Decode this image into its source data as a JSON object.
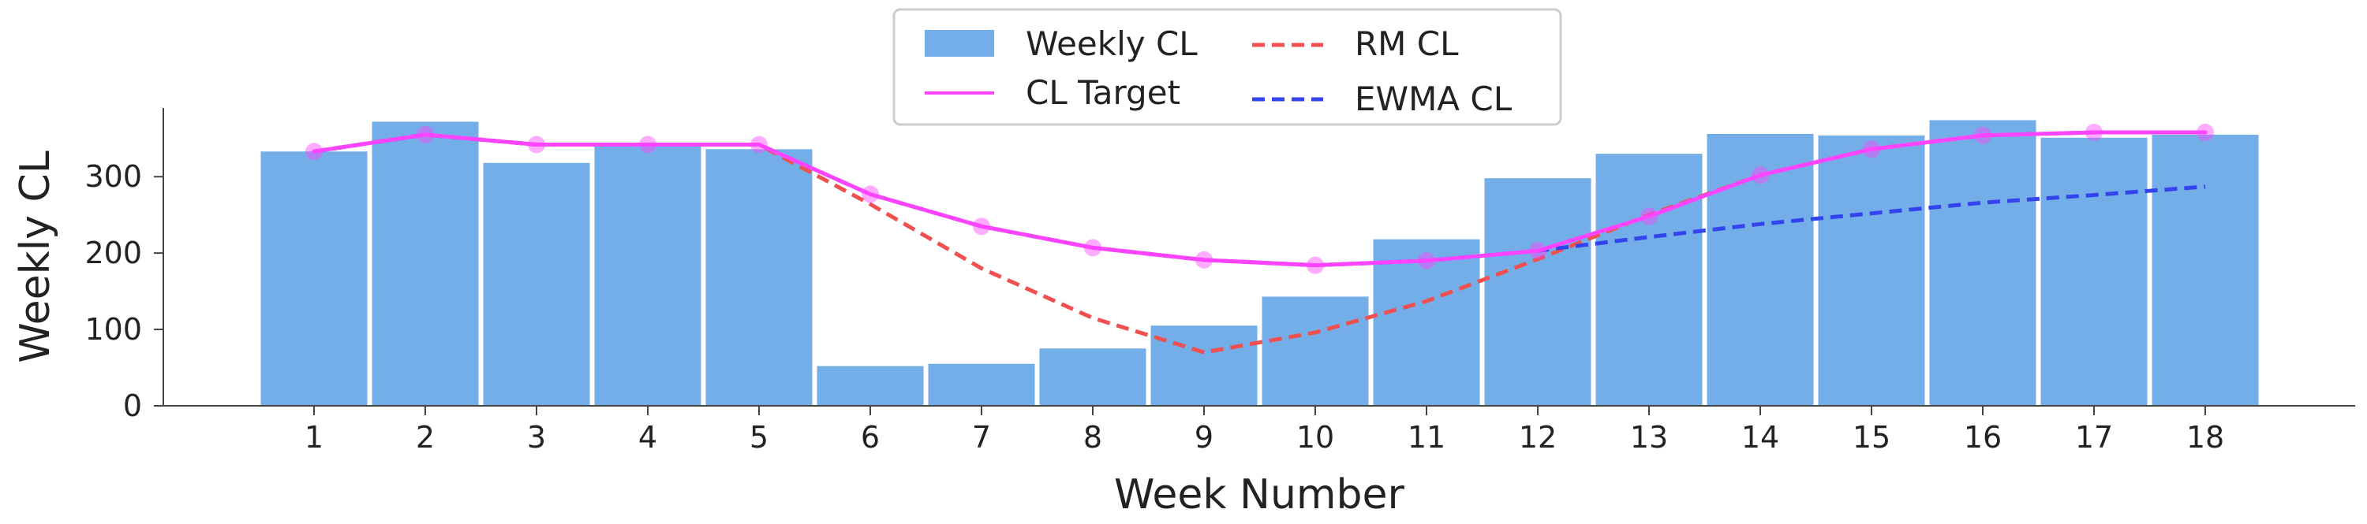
{
  "chart_data": {
    "type": "bar",
    "title": "",
    "xlabel": "Week Number",
    "ylabel": "Weekly CL",
    "categories": [
      "1",
      "2",
      "3",
      "4",
      "5",
      "6",
      "7",
      "8",
      "9",
      "10",
      "11",
      "12",
      "13",
      "14",
      "15",
      "16",
      "17",
      "18"
    ],
    "ylim": [
      0,
      390
    ],
    "yticks": [
      0,
      100,
      200,
      300
    ],
    "grid": false,
    "legend_position": "top-center",
    "series": [
      {
        "name": "Weekly CL",
        "kind": "bar",
        "color": "#74aee8",
        "values": [
          333,
          372,
          318,
          343,
          336,
          52,
          55,
          75,
          105,
          143,
          218,
          298,
          330,
          356,
          354,
          374,
          351,
          355
        ]
      },
      {
        "name": "CL Target",
        "kind": "line",
        "style": "solid",
        "color": "#ff44ff",
        "markers": true,
        "values": [
          333,
          355,
          342,
          342,
          342,
          277,
          235,
          207,
          191,
          184,
          190,
          203,
          248,
          302,
          336,
          354,
          358,
          358
        ]
      },
      {
        "name": "RM CL",
        "kind": "line",
        "style": "dashed",
        "color": "#f05050",
        "values": [
          333,
          355,
          342,
          342,
          342,
          264,
          180,
          115,
          70,
          96,
          137,
          192,
          250,
          302,
          336,
          354,
          358,
          358
        ]
      },
      {
        "name": "EWMA CL",
        "kind": "line",
        "style": "dashed",
        "color": "#3344ee",
        "values": [
          333,
          355,
          342,
          342,
          342,
          277,
          235,
          207,
          191,
          184,
          190,
          203,
          221,
          238,
          252,
          266,
          276,
          287
        ]
      }
    ]
  }
}
